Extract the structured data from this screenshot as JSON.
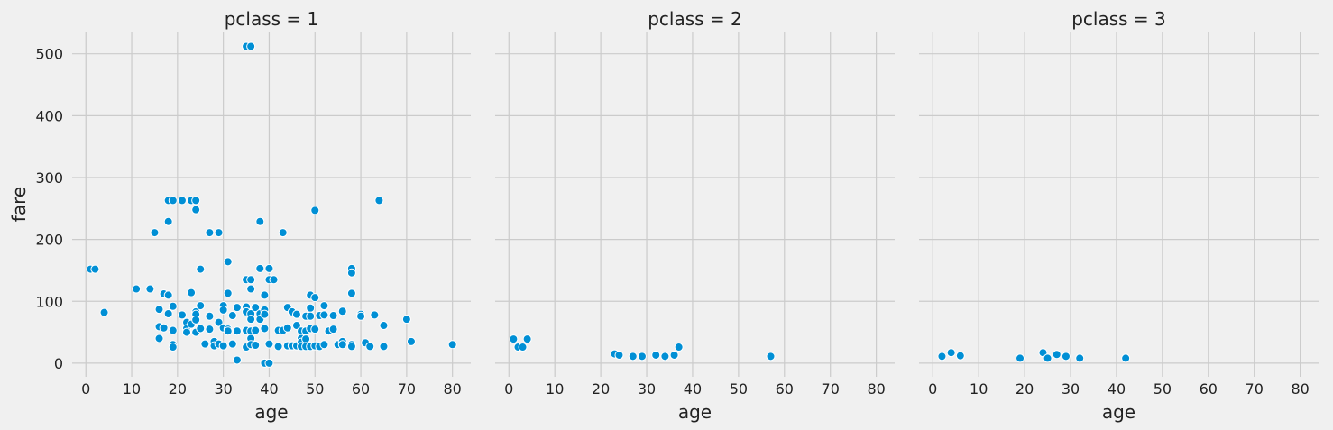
{
  "chart_data": [
    {
      "type": "scatter",
      "title": "pclass = 1",
      "xlabel": "age",
      "ylabel": "fare",
      "xlim": [
        -3,
        84
      ],
      "ylim": [
        -22,
        536
      ],
      "xticks": [
        "0",
        "10",
        "20",
        "30",
        "40",
        "50",
        "60",
        "70",
        "80"
      ],
      "yticks": [
        "0",
        "100",
        "200",
        "300",
        "400",
        "500"
      ],
      "grid": true,
      "color": "#008fd5",
      "points": [
        [
          35,
          512
        ],
        [
          36,
          512
        ],
        [
          1,
          152
        ],
        [
          2,
          152
        ],
        [
          4,
          82
        ],
        [
          11,
          120
        ],
        [
          14,
          120
        ],
        [
          15,
          211
        ],
        [
          16,
          87
        ],
        [
          16,
          59
        ],
        [
          16,
          40
        ],
        [
          17,
          112
        ],
        [
          17,
          57
        ],
        [
          18,
          263
        ],
        [
          18,
          229
        ],
        [
          18,
          110
        ],
        [
          18,
          80
        ],
        [
          19,
          263
        ],
        [
          19,
          92
        ],
        [
          19,
          53
        ],
        [
          19,
          30
        ],
        [
          19,
          26
        ],
        [
          21,
          263
        ],
        [
          21,
          78
        ],
        [
          22,
          66
        ],
        [
          22,
          56
        ],
        [
          22,
          50
        ],
        [
          23,
          263
        ],
        [
          23,
          114
        ],
        [
          23,
          63
        ],
        [
          24,
          263
        ],
        [
          24,
          248
        ],
        [
          24,
          83
        ],
        [
          24,
          79
        ],
        [
          24,
          70
        ],
        [
          24,
          50
        ],
        [
          25,
          152
        ],
        [
          25,
          93
        ],
        [
          25,
          56
        ],
        [
          26,
          31
        ],
        [
          27,
          211
        ],
        [
          27,
          76
        ],
        [
          27,
          55
        ],
        [
          28,
          35
        ],
        [
          28,
          28
        ],
        [
          29,
          211
        ],
        [
          29,
          66
        ],
        [
          29,
          31
        ],
        [
          30,
          93
        ],
        [
          30,
          86
        ],
        [
          30,
          57
        ],
        [
          30,
          28
        ],
        [
          31,
          164
        ],
        [
          31,
          113
        ],
        [
          31,
          55
        ],
        [
          31,
          52
        ],
        [
          32,
          77
        ],
        [
          32,
          31
        ],
        [
          33,
          90
        ],
        [
          33,
          52
        ],
        [
          33,
          5
        ],
        [
          35,
          135
        ],
        [
          35,
          91
        ],
        [
          35,
          83
        ],
        [
          35,
          53
        ],
        [
          35,
          26
        ],
        [
          36,
          135
        ],
        [
          36,
          120
        ],
        [
          36,
          80
        ],
        [
          36,
          71
        ],
        [
          36,
          52
        ],
        [
          36,
          40
        ],
        [
          36,
          30
        ],
        [
          37,
          90
        ],
        [
          37,
          53
        ],
        [
          37,
          29
        ],
        [
          38,
          229
        ],
        [
          38,
          153
        ],
        [
          38,
          80
        ],
        [
          38,
          71
        ],
        [
          39,
          110
        ],
        [
          39,
          86
        ],
        [
          39,
          79
        ],
        [
          39,
          56
        ],
        [
          39,
          0
        ],
        [
          40,
          153
        ],
        [
          40,
          135
        ],
        [
          40,
          31
        ],
        [
          40,
          0
        ],
        [
          41,
          135
        ],
        [
          42,
          53
        ],
        [
          42,
          27
        ],
        [
          43,
          211
        ],
        [
          43,
          53
        ],
        [
          44,
          90
        ],
        [
          44,
          57
        ],
        [
          44,
          28
        ],
        [
          45,
          83
        ],
        [
          45,
          28
        ],
        [
          46,
          79
        ],
        [
          46,
          61
        ],
        [
          46,
          28
        ],
        [
          47,
          52
        ],
        [
          47,
          40
        ],
        [
          47,
          34
        ],
        [
          47,
          27
        ],
        [
          48,
          76
        ],
        [
          48,
          52
        ],
        [
          48,
          39
        ],
        [
          48,
          27
        ],
        [
          49,
          110
        ],
        [
          49,
          89
        ],
        [
          49,
          76
        ],
        [
          49,
          56
        ],
        [
          49,
          27
        ],
        [
          50,
          247
        ],
        [
          50,
          106
        ],
        [
          50,
          55
        ],
        [
          50,
          28
        ],
        [
          51,
          77
        ],
        [
          51,
          27
        ],
        [
          52,
          93
        ],
        [
          52,
          78
        ],
        [
          52,
          30
        ],
        [
          53,
          52
        ],
        [
          54,
          77
        ],
        [
          54,
          55
        ],
        [
          55,
          30
        ],
        [
          56,
          84
        ],
        [
          56,
          35
        ],
        [
          56,
          30
        ],
        [
          58,
          153
        ],
        [
          58,
          146
        ],
        [
          58,
          113
        ],
        [
          58,
          30
        ],
        [
          58,
          27
        ],
        [
          60,
          79
        ],
        [
          60,
          76
        ],
        [
          61,
          33
        ],
        [
          62,
          27
        ],
        [
          63,
          78
        ],
        [
          64,
          263
        ],
        [
          65,
          61
        ],
        [
          65,
          27
        ],
        [
          70,
          71
        ],
        [
          71,
          35
        ],
        [
          80,
          30
        ]
      ]
    },
    {
      "type": "scatter",
      "title": "pclass = 2",
      "xlabel": "age",
      "ylabel": "",
      "xlim": [
        -3,
        84
      ],
      "ylim": [
        -22,
        536
      ],
      "xticks": [
        "0",
        "10",
        "20",
        "30",
        "40",
        "50",
        "60",
        "70",
        "80"
      ],
      "yticks": [],
      "grid": true,
      "color": "#008fd5",
      "points": [
        [
          1,
          39
        ],
        [
          2,
          26
        ],
        [
          3,
          26
        ],
        [
          4,
          39
        ],
        [
          23,
          15
        ],
        [
          24,
          13
        ],
        [
          27,
          11
        ],
        [
          29,
          11
        ],
        [
          32,
          13
        ],
        [
          34,
          11
        ],
        [
          36,
          13
        ],
        [
          37,
          26
        ],
        [
          57,
          11
        ]
      ]
    },
    {
      "type": "scatter",
      "title": "pclass = 3",
      "xlabel": "age",
      "ylabel": "",
      "xlim": [
        -3,
        84
      ],
      "ylim": [
        -22,
        536
      ],
      "xticks": [
        "0",
        "10",
        "20",
        "30",
        "40",
        "50",
        "60",
        "70",
        "80"
      ],
      "yticks": [],
      "grid": true,
      "color": "#008fd5",
      "points": [
        [
          2,
          11
        ],
        [
          4,
          17
        ],
        [
          6,
          12
        ],
        [
          19,
          8
        ],
        [
          24,
          17
        ],
        [
          25,
          8
        ],
        [
          27,
          14
        ],
        [
          29,
          11
        ],
        [
          32,
          8
        ],
        [
          42,
          8
        ]
      ]
    }
  ]
}
